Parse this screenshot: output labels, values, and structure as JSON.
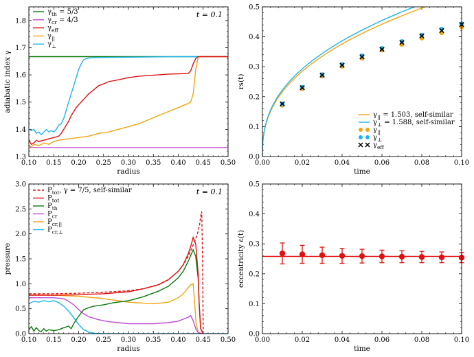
{
  "colors": {
    "green": "#0b7a0b",
    "violet": "#bf4ad6",
    "red": "#e01010",
    "orange": "#f5a30f",
    "cyan": "#1bb5ee",
    "black": "#000000"
  },
  "chart_data": [
    {
      "id": "p1",
      "type": "line",
      "xlabel": "radius",
      "ylabel": "adiabatic index γ",
      "xlim": [
        0.1,
        0.5
      ],
      "ylim": [
        1.3,
        1.85
      ],
      "xticks": [
        "0.10",
        "0.15",
        "0.20",
        "0.25",
        "0.30",
        "0.35",
        "0.40",
        "0.45",
        "0.50"
      ],
      "yticks": [
        "1.3",
        "1.4",
        "1.5",
        "1.6",
        "1.7",
        "1.8"
      ],
      "annotation": "t = 0.1",
      "legend": [
        "γth = 5/3",
        "γcr = 4/3",
        "γeff",
        "γ||",
        "γ⊥"
      ],
      "series": [
        {
          "name": "γth = 5/3",
          "color": "green",
          "x": [
            0.1,
            0.5
          ],
          "y": [
            1.667,
            1.667
          ]
        },
        {
          "name": "γcr = 4/3",
          "color": "violet",
          "x": [
            0.1,
            0.5
          ],
          "y": [
            1.333,
            1.333
          ]
        },
        {
          "name": "γeff",
          "color": "red",
          "x": [
            0.1,
            0.105,
            0.11,
            0.115,
            0.12,
            0.13,
            0.14,
            0.15,
            0.16,
            0.165,
            0.17,
            0.175,
            0.18,
            0.185,
            0.19,
            0.195,
            0.2,
            0.205,
            0.21,
            0.215,
            0.22,
            0.23,
            0.24,
            0.25,
            0.26,
            0.28,
            0.3,
            0.32,
            0.34,
            0.36,
            0.38,
            0.4,
            0.42,
            0.425,
            0.43,
            0.435,
            0.44,
            0.5
          ],
          "y": [
            1.36,
            1.345,
            1.35,
            1.36,
            1.355,
            1.36,
            1.365,
            1.37,
            1.375,
            1.385,
            1.4,
            1.415,
            1.43,
            1.45,
            1.465,
            1.48,
            1.49,
            1.5,
            1.51,
            1.52,
            1.53,
            1.545,
            1.56,
            1.567,
            1.575,
            1.582,
            1.59,
            1.595,
            1.598,
            1.6,
            1.603,
            1.604,
            1.605,
            1.615,
            1.64,
            1.66,
            1.667,
            1.667
          ]
        },
        {
          "name": "γ||",
          "color": "orange",
          "x": [
            0.1,
            0.105,
            0.11,
            0.12,
            0.13,
            0.14,
            0.15,
            0.16,
            0.18,
            0.2,
            0.22,
            0.24,
            0.26,
            0.28,
            0.3,
            0.32,
            0.34,
            0.36,
            0.38,
            0.4,
            0.42,
            0.425,
            0.43,
            0.435,
            0.44,
            0.5
          ],
          "y": [
            1.34,
            1.335,
            1.345,
            1.34,
            1.35,
            1.345,
            1.355,
            1.36,
            1.365,
            1.37,
            1.375,
            1.385,
            1.39,
            1.4,
            1.41,
            1.42,
            1.435,
            1.45,
            1.465,
            1.48,
            1.495,
            1.5,
            1.53,
            1.62,
            1.667,
            1.667
          ]
        },
        {
          "name": "γ⊥",
          "color": "cyan",
          "x": [
            0.1,
            0.105,
            0.11,
            0.115,
            0.12,
            0.125,
            0.13,
            0.135,
            0.14,
            0.145,
            0.15,
            0.155,
            0.16,
            0.165,
            0.17,
            0.175,
            0.18,
            0.185,
            0.19,
            0.195,
            0.2,
            0.205,
            0.21,
            0.215,
            0.22,
            0.23,
            0.25,
            0.3,
            0.35,
            0.4,
            0.45,
            0.5
          ],
          "y": [
            1.4,
            1.395,
            1.4,
            1.385,
            1.39,
            1.38,
            1.39,
            1.4,
            1.39,
            1.395,
            1.39,
            1.4,
            1.415,
            1.42,
            1.44,
            1.47,
            1.5,
            1.53,
            1.56,
            1.59,
            1.62,
            1.64,
            1.655,
            1.66,
            1.662,
            1.663,
            1.664,
            1.665,
            1.666,
            1.667,
            1.667,
            1.667
          ]
        }
      ]
    },
    {
      "id": "p2",
      "type": "line",
      "xlabel": "time",
      "ylabel": "rs(t)",
      "xlim": [
        0.0,
        0.1
      ],
      "ylim": [
        0.0,
        0.5
      ],
      "xticks": [
        "0.00",
        "0.02",
        "0.04",
        "0.06",
        "0.08",
        "0.10"
      ],
      "yticks": [
        "0.0",
        "0.1",
        "0.2",
        "0.3",
        "0.4",
        "0.5"
      ],
      "legend": [
        "γ|| = 1.503, self-similar",
        "γ⊥ = 1.588, self-similar",
        "γ||",
        "γ⊥",
        "γeff"
      ],
      "series": [
        {
          "name": "γ|| = 1.503, self-similar",
          "color": "orange",
          "kind": "line",
          "coef": 1.362
        },
        {
          "name": "γ⊥ = 1.588, self-similar",
          "color": "cyan",
          "kind": "line",
          "coef": 1.4
        },
        {
          "name": "γ||",
          "color": "orange",
          "kind": "points",
          "x": [
            0.01,
            0.02,
            0.03,
            0.04,
            0.05,
            0.06,
            0.07,
            0.08,
            0.09,
            0.1
          ],
          "y": [
            0.171,
            0.226,
            0.268,
            0.301,
            0.328,
            0.355,
            0.374,
            0.395,
            0.413,
            0.432
          ]
        },
        {
          "name": "γ⊥",
          "color": "cyan",
          "kind": "points",
          "x": [
            0.01,
            0.02,
            0.03,
            0.04,
            0.05,
            0.06,
            0.07,
            0.08,
            0.09,
            0.1
          ],
          "y": [
            0.176,
            0.232,
            0.274,
            0.308,
            0.337,
            0.362,
            0.385,
            0.406,
            0.426,
            0.444
          ]
        },
        {
          "name": "γeff",
          "color": "black",
          "kind": "cross",
          "x": [
            0.01,
            0.02,
            0.03,
            0.04,
            0.05,
            0.06,
            0.07,
            0.08,
            0.09,
            0.1
          ],
          "y": [
            0.176,
            0.23,
            0.272,
            0.305,
            0.333,
            0.358,
            0.381,
            0.403,
            0.421,
            0.441
          ]
        }
      ]
    },
    {
      "id": "p3",
      "type": "line",
      "xlabel": "radius",
      "ylabel": "pressure",
      "xlim": [
        0.1,
        0.5
      ],
      "ylim": [
        0.0,
        3.0
      ],
      "xticks": [
        "0.10",
        "0.15",
        "0.20",
        "0.25",
        "0.30",
        "0.35",
        "0.40",
        "0.45",
        "0.50"
      ],
      "yticks": [
        "0.0",
        "0.5",
        "1.0",
        "1.5",
        "2.0",
        "2.5",
        "3.0"
      ],
      "annotation": "t = 0.1",
      "legend": [
        "Ptot, γ = 7/5, self-similar",
        "Ptot",
        "Pth",
        "Pcr",
        "Pcr,||",
        "Pcr,⊥"
      ],
      "series": [
        {
          "name": "Ptot, γ = 7/5, self-similar",
          "color": "red",
          "dashed": true,
          "x": [
            0.1,
            0.15,
            0.2,
            0.25,
            0.3,
            0.33,
            0.36,
            0.38,
            0.4,
            0.41,
            0.42,
            0.43,
            0.435,
            0.44,
            0.443,
            0.445,
            0.447,
            0.449,
            0.45
          ],
          "y": [
            0.8,
            0.8,
            0.81,
            0.83,
            0.86,
            0.9,
            0.98,
            1.08,
            1.25,
            1.38,
            1.55,
            1.78,
            1.9,
            2.05,
            2.2,
            2.35,
            2.45,
            1.4,
            0.0
          ]
        },
        {
          "name": "Ptot",
          "color": "red",
          "x": [
            0.1,
            0.15,
            0.2,
            0.22,
            0.25,
            0.3,
            0.33,
            0.36,
            0.38,
            0.4,
            0.41,
            0.42,
            0.425,
            0.43,
            0.435,
            0.44,
            0.442,
            0.445,
            0.45
          ],
          "y": [
            0.77,
            0.77,
            0.78,
            0.79,
            0.8,
            0.84,
            0.9,
            0.98,
            1.08,
            1.25,
            1.38,
            1.6,
            1.75,
            1.93,
            1.8,
            1.2,
            0.6,
            0.1,
            0.0
          ]
        },
        {
          "name": "Pth",
          "color": "green",
          "x": [
            0.1,
            0.105,
            0.11,
            0.115,
            0.12,
            0.125,
            0.13,
            0.135,
            0.14,
            0.15,
            0.16,
            0.17,
            0.18,
            0.185,
            0.19,
            0.2,
            0.21,
            0.22,
            0.23,
            0.25,
            0.27,
            0.3,
            0.33,
            0.36,
            0.38,
            0.4,
            0.41,
            0.42,
            0.43,
            0.435,
            0.44,
            0.442,
            0.445,
            0.45
          ],
          "y": [
            0.08,
            0.14,
            0.05,
            0.12,
            0.06,
            0.04,
            0.1,
            0.05,
            0.08,
            0.06,
            0.08,
            0.12,
            0.15,
            0.1,
            0.2,
            0.35,
            0.48,
            0.52,
            0.55,
            0.58,
            0.62,
            0.66,
            0.74,
            0.85,
            0.95,
            1.12,
            1.25,
            1.45,
            1.68,
            1.55,
            1.1,
            0.6,
            0.1,
            0.0
          ]
        },
        {
          "name": "Pcr",
          "color": "violet",
          "x": [
            0.1,
            0.15,
            0.17,
            0.18,
            0.19,
            0.2,
            0.21,
            0.22,
            0.24,
            0.26,
            0.3,
            0.35,
            0.38,
            0.4,
            0.42,
            0.425,
            0.43,
            0.435,
            0.44,
            0.45
          ],
          "y": [
            0.72,
            0.72,
            0.7,
            0.65,
            0.58,
            0.48,
            0.4,
            0.34,
            0.28,
            0.24,
            0.2,
            0.2,
            0.22,
            0.25,
            0.33,
            0.36,
            0.26,
            0.1,
            0.02,
            0.0
          ]
        },
        {
          "name": "Pcr,||",
          "color": "orange",
          "x": [
            0.1,
            0.15,
            0.2,
            0.25,
            0.3,
            0.35,
            0.38,
            0.4,
            0.41,
            0.42,
            0.425,
            0.43,
            0.433,
            0.436,
            0.44,
            0.45
          ],
          "y": [
            0.78,
            0.77,
            0.75,
            0.7,
            0.63,
            0.6,
            0.63,
            0.72,
            0.8,
            0.92,
            0.98,
            1.0,
            0.6,
            0.2,
            0.02,
            0.0
          ]
        },
        {
          "name": "Pcr,⊥",
          "color": "cyan",
          "x": [
            0.1,
            0.11,
            0.12,
            0.13,
            0.14,
            0.15,
            0.16,
            0.17,
            0.18,
            0.19,
            0.2,
            0.21,
            0.22,
            0.23,
            0.25,
            0.3,
            0.35,
            0.4,
            0.45,
            0.5
          ],
          "y": [
            0.6,
            0.65,
            0.63,
            0.66,
            0.64,
            0.66,
            0.62,
            0.55,
            0.45,
            0.32,
            0.18,
            0.08,
            0.03,
            0.01,
            0.0,
            0.0,
            0.0,
            0.0,
            0.0,
            0.0
          ]
        }
      ]
    },
    {
      "id": "p4",
      "type": "scatter",
      "xlabel": "time",
      "ylabel": "eccentricity ε(t)",
      "xlim": [
        0.0,
        0.1
      ],
      "ylim": [
        0.0,
        0.5
      ],
      "xticks": [
        "0.00",
        "0.02",
        "0.04",
        "0.06",
        "0.08",
        "0.10"
      ],
      "yticks": [
        "0.0",
        "0.1",
        "0.2",
        "0.3",
        "0.4",
        "0.5"
      ],
      "hline": 0.258,
      "series": [
        {
          "name": "ε(t)",
          "color": "red",
          "x": [
            0.01,
            0.02,
            0.03,
            0.04,
            0.05,
            0.06,
            0.07,
            0.08,
            0.09,
            0.1
          ],
          "y": [
            0.268,
            0.265,
            0.262,
            0.26,
            0.259,
            0.258,
            0.257,
            0.256,
            0.255,
            0.254
          ],
          "err": [
            0.035,
            0.03,
            0.027,
            0.025,
            0.023,
            0.021,
            0.02,
            0.019,
            0.018,
            0.017
          ]
        }
      ]
    }
  ]
}
